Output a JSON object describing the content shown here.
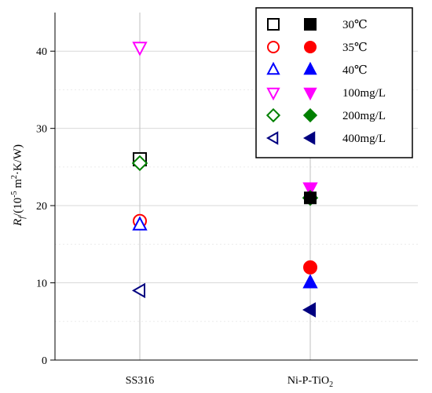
{
  "chart_data": {
    "type": "scatter",
    "ylabel": "Rf/(10^-5 m2·K/W)",
    "ylabel_parts": {
      "symbol": "R",
      "subscript": "f",
      "prefix": "/(10",
      "exponent": "-5",
      "middle": " m",
      "square": "2",
      "suffix": "·K/W)"
    },
    "categories": [
      "SS316",
      "Ni-P-TiO2"
    ],
    "category_labels": [
      {
        "main": "SS316",
        "sub": ""
      },
      {
        "main": "Ni-P-TiO",
        "sub": "2"
      }
    ],
    "ylim": [
      0,
      45
    ],
    "yticks": [
      0,
      10,
      20,
      30,
      40
    ],
    "grid": {
      "x": true,
      "y": true,
      "y_minor": true
    },
    "legend_position": "top-right",
    "series": [
      {
        "name": "30℃",
        "symbol": "square",
        "color": "#000000",
        "values": [
          26,
          null
        ],
        "filled_values": [
          null,
          null
        ]
      },
      {
        "name": "35℃",
        "symbol": "circle",
        "color": "#ff0000",
        "values": [
          18,
          null
        ],
        "filled_values": [
          null,
          12
        ]
      },
      {
        "name": "40℃",
        "symbol": "triangle-up",
        "color": "#0000ff",
        "values": [
          17.5,
          null
        ],
        "filled_values": [
          null,
          10
        ]
      },
      {
        "name": "100mg/L",
        "symbol": "triangle-down",
        "color": "#ff00ff",
        "values": [
          40.5,
          null
        ],
        "filled_values": [
          null,
          22.3
        ]
      },
      {
        "name": "200mg/L",
        "symbol": "diamond",
        "color": "#008000",
        "values": [
          25.5,
          null
        ],
        "filled_values": [
          null,
          21
        ]
      },
      {
        "name": "400mg/L",
        "symbol": "triangle-left",
        "color": "#000080",
        "values": [
          9,
          null
        ],
        "filled_values": [
          null,
          6.5
        ]
      }
    ],
    "extra_points": [
      {
        "series": "30℃",
        "category": "Ni-P-TiO2",
        "value": 21,
        "filled": true,
        "symbol": "square",
        "color": "#000000"
      }
    ]
  }
}
